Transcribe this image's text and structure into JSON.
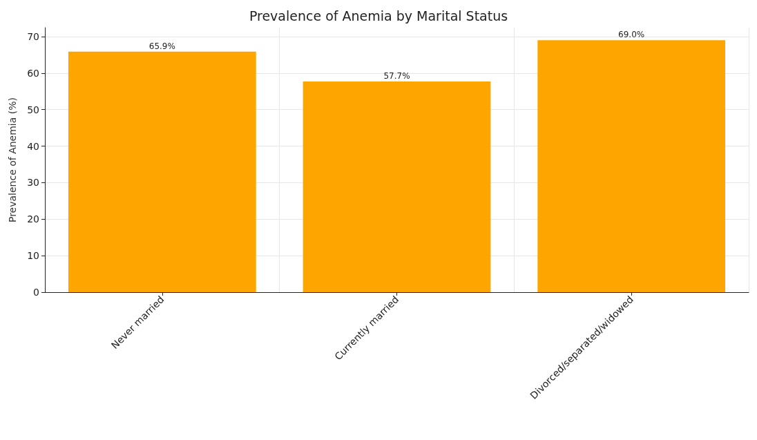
{
  "chart_data": {
    "type": "bar",
    "title": "Prevalence of Anemia by Marital Status",
    "ylabel": "Prevalence of Anemia (%)",
    "categories": [
      "Never married",
      "Currently married",
      "Divorced/separated/widowed"
    ],
    "values": [
      65.9,
      57.7,
      69.0
    ],
    "color": "#ffa500",
    "value_labels": [
      "65.9%",
      "57.7%",
      "69.0%"
    ],
    "ylim": [
      0,
      72.45
    ],
    "yticks": [
      0,
      10,
      20,
      30,
      40,
      50,
      60,
      70
    ],
    "grid": true
  }
}
